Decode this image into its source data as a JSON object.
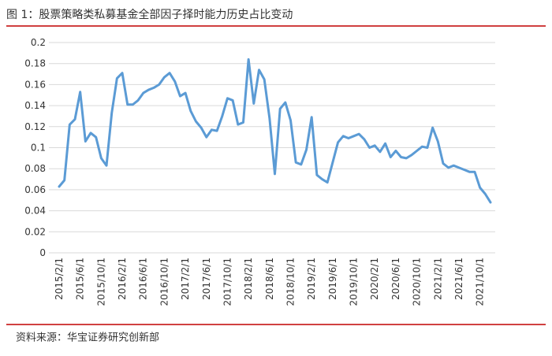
{
  "chart_data": {
    "type": "line",
    "title": "图 1：股票策略类私募基金全部因子择时能力历史占比变动",
    "source": "资料来源：华宝证券研究创新部",
    "categories": [
      "2015/2/1",
      null,
      null,
      null,
      "2015/6/1",
      null,
      null,
      null,
      "2015/10/1",
      null,
      null,
      null,
      "2016/2/1",
      null,
      null,
      null,
      "2016/6/1",
      null,
      null,
      null,
      "2016/10/1",
      null,
      null,
      null,
      "2017/2/1",
      null,
      null,
      null,
      "2017/6/1",
      null,
      null,
      null,
      "2017/10/1",
      null,
      null,
      null,
      "2018/2/1",
      null,
      null,
      null,
      "2018/6/1",
      null,
      null,
      null,
      "2018/10/1",
      null,
      null,
      null,
      "2019/2/1",
      null,
      null,
      null,
      "2019/6/1",
      null,
      null,
      null,
      "2019/10/1",
      null,
      null,
      null,
      "2020/2/1",
      null,
      null,
      null,
      "2020/6/1",
      null,
      null,
      null,
      "2020/10/1",
      null,
      null,
      null,
      "2021/2/1",
      null,
      null,
      null,
      "2021/6/1",
      null,
      null,
      null,
      "2021/10/1",
      null,
      null
    ],
    "values": [
      0.063,
      0.069,
      0.122,
      0.127,
      0.153,
      0.106,
      0.114,
      0.11,
      0.09,
      0.083,
      0.133,
      0.166,
      0.171,
      0.141,
      0.141,
      0.145,
      0.152,
      0.155,
      0.157,
      0.16,
      0.167,
      0.171,
      0.163,
      0.149,
      0.152,
      0.135,
      0.125,
      0.119,
      0.11,
      0.117,
      0.116,
      0.13,
      0.147,
      0.145,
      0.122,
      0.124,
      0.184,
      0.142,
      0.174,
      0.165,
      0.128,
      0.075,
      0.137,
      0.143,
      0.126,
      0.086,
      0.084,
      0.098,
      0.129,
      0.074,
      0.07,
      0.067,
      0.086,
      0.105,
      0.111,
      0.109,
      0.111,
      0.113,
      0.108,
      0.1,
      0.102,
      0.096,
      0.104,
      0.091,
      0.097,
      0.091,
      0.09,
      0.093,
      0.097,
      0.101,
      0.1,
      0.119,
      0.106,
      0.085,
      0.081,
      0.083,
      0.081,
      0.079,
      0.077,
      0.077,
      0.062,
      0.056,
      0.048
    ],
    "color": "#5b9bd5",
    "ylim": [
      0,
      0.2
    ],
    "yticks": [
      0,
      0.02,
      0.04,
      0.06,
      0.08,
      0.1,
      0.12,
      0.14,
      0.16,
      0.18,
      0.2
    ],
    "grid": true
  }
}
